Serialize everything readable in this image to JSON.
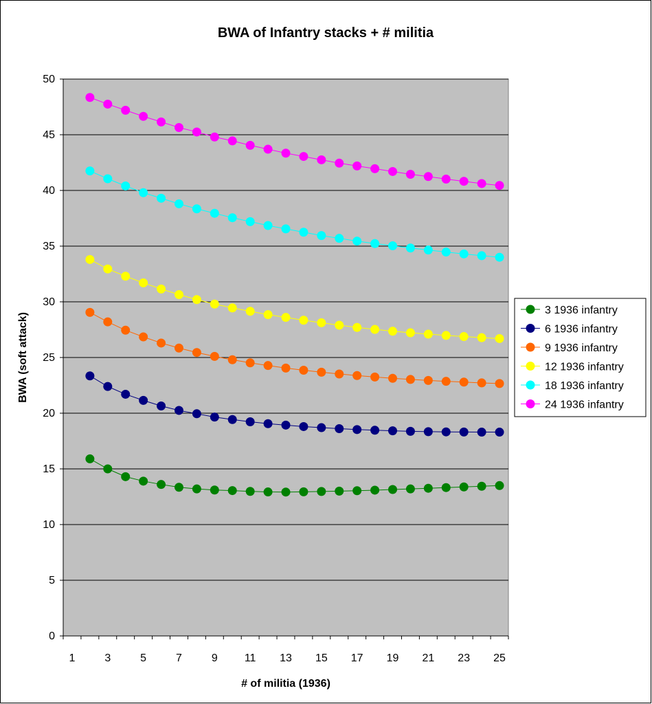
{
  "chart_data": {
    "type": "line",
    "title": "BWA of Infantry stacks + # militia",
    "xlabel": "# of militia (1936)",
    "ylabel": "BWA (soft attack)",
    "xlim": [
      0.5,
      25.5
    ],
    "ylim": [
      0,
      50
    ],
    "y_ticks": [
      0,
      5,
      10,
      15,
      20,
      25,
      30,
      35,
      40,
      45,
      50
    ],
    "x_tick_labels": [
      1,
      3,
      5,
      7,
      9,
      11,
      13,
      15,
      17,
      19,
      21,
      23,
      25
    ],
    "grid": "horizontal",
    "legend_position": "right",
    "x": [
      2,
      3,
      4,
      5,
      6,
      7,
      8,
      9,
      10,
      11,
      12,
      13,
      14,
      15,
      16,
      17,
      18,
      19,
      20,
      21,
      22,
      23,
      24,
      25
    ],
    "series": [
      {
        "name": "3 1936 infantry",
        "color": "#008000",
        "values": [
          15.9,
          15.0,
          14.3,
          13.9,
          13.6,
          13.35,
          13.2,
          13.1,
          13.05,
          12.98,
          12.93,
          12.92,
          12.94,
          12.97,
          13.0,
          13.04,
          13.09,
          13.15,
          13.2,
          13.26,
          13.32,
          13.38,
          13.44,
          13.5
        ]
      },
      {
        "name": "6 1936 infantry",
        "color": "#000080",
        "values": [
          23.35,
          22.4,
          21.7,
          21.15,
          20.65,
          20.25,
          19.95,
          19.65,
          19.43,
          19.23,
          19.06,
          18.93,
          18.8,
          18.7,
          18.61,
          18.53,
          18.47,
          18.42,
          18.37,
          18.34,
          18.32,
          18.31,
          18.3,
          18.3
        ]
      },
      {
        "name": "9 1936 infantry",
        "color": "#FF6600",
        "values": [
          29.05,
          28.2,
          27.45,
          26.85,
          26.3,
          25.85,
          25.45,
          25.1,
          24.8,
          24.52,
          24.28,
          24.05,
          23.86,
          23.68,
          23.52,
          23.38,
          23.25,
          23.13,
          23.03,
          22.94,
          22.86,
          22.79,
          22.72,
          22.66
        ]
      },
      {
        "name": "12 1936 infantry",
        "color": "#FFFF00",
        "values": [
          33.8,
          32.95,
          32.3,
          31.7,
          31.15,
          30.65,
          30.2,
          29.8,
          29.45,
          29.15,
          28.85,
          28.6,
          28.35,
          28.12,
          27.9,
          27.7,
          27.52,
          27.36,
          27.22,
          27.1,
          26.98,
          26.88,
          26.78,
          26.7
        ]
      },
      {
        "name": "18 1936 infantry",
        "color": "#00FFFF",
        "values": [
          41.75,
          41.05,
          40.4,
          39.8,
          39.3,
          38.8,
          38.35,
          37.95,
          37.55,
          37.2,
          36.85,
          36.55,
          36.25,
          35.95,
          35.7,
          35.45,
          35.23,
          35.03,
          34.83,
          34.65,
          34.47,
          34.3,
          34.14,
          34.0
        ]
      },
      {
        "name": "24 1936 infantry",
        "color": "#FF00FF",
        "values": [
          48.35,
          47.75,
          47.2,
          46.65,
          46.15,
          45.65,
          45.25,
          44.8,
          44.45,
          44.05,
          43.7,
          43.35,
          43.05,
          42.75,
          42.45,
          42.2,
          41.95,
          41.7,
          41.45,
          41.25,
          41.02,
          40.82,
          40.62,
          40.45
        ]
      }
    ]
  }
}
